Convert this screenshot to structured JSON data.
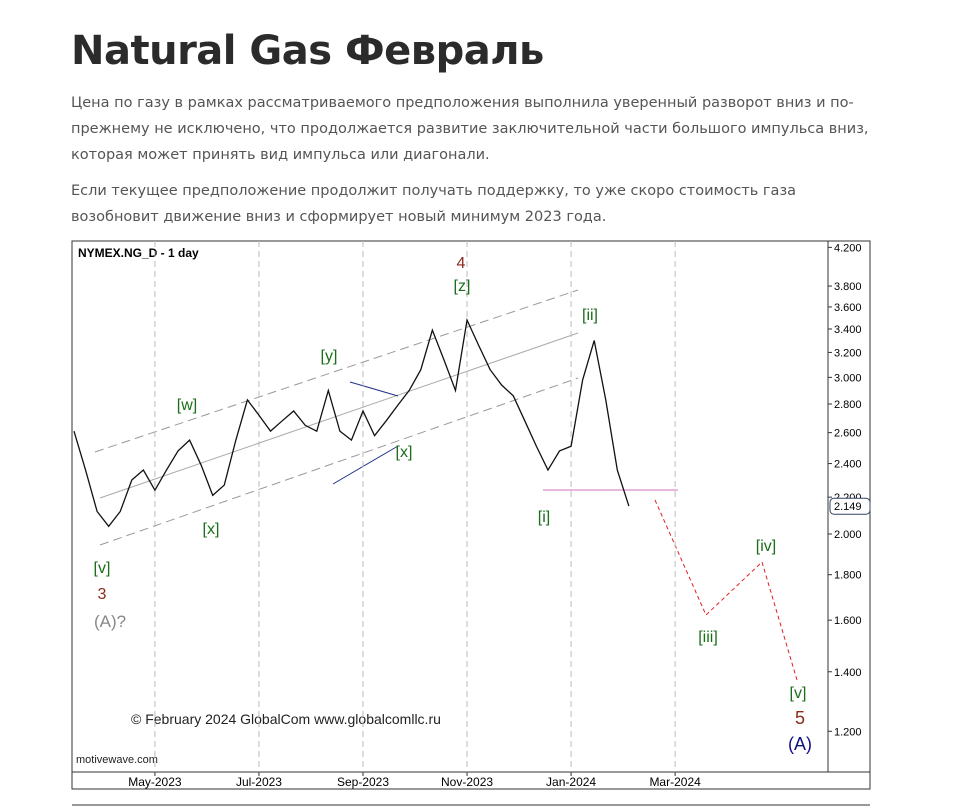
{
  "header": {
    "title": "Natural Gas Февраль"
  },
  "paragraphs": [
    "Цена по газу в рамках рассматриваемого предположения выполнила уверенный разворот вниз и по-прежнему не исключено, что продолжается развитие заключительной части большого импульса вниз, которая может принять вид импульса или диагонали.",
    "Если текущее предположение продолжит получать поддержку, то уже скоро стоимость газа возобновит движение вниз и сформирует новый минимум 2023 года."
  ],
  "chart_data": {
    "type": "line",
    "title": "NYMEX.NG_D - 1 day",
    "log_scale": true,
    "grid": true,
    "categories": [
      null,
      null,
      null,
      null,
      null,
      null,
      null,
      "May-2023",
      null,
      null,
      null,
      null,
      null,
      null,
      null,
      null,
      "Jul-2023",
      null,
      null,
      null,
      null,
      null,
      null,
      null,
      null,
      "Sep-2023",
      null,
      null,
      null,
      null,
      null,
      null,
      null,
      null,
      "Nov-2023",
      null,
      null,
      null,
      null,
      null,
      null,
      null,
      null,
      "Jan-2024",
      null,
      null,
      null,
      null,
      null,
      null,
      null,
      null,
      "Mar-2024",
      null,
      null,
      null,
      null,
      null,
      null,
      null,
      null,
      null,
      null,
      null,
      null,
      null
    ],
    "series": [
      {
        "name": "NG",
        "color": "#111111",
        "values": [
          2.61,
          2.36,
          2.12,
          2.04,
          2.12,
          2.3,
          2.36,
          2.24,
          2.36,
          2.48,
          2.55,
          2.39,
          2.21,
          2.27,
          2.55,
          2.83,
          2.72,
          2.61,
          2.68,
          2.75,
          2.65,
          2.61,
          2.9,
          2.61,
          2.55,
          2.75,
          2.58,
          2.68,
          2.79,
          2.9,
          3.06,
          3.39,
          3.14,
          2.9,
          3.48,
          3.26,
          3.06,
          2.94,
          2.86,
          2.68,
          2.51,
          2.36,
          2.48,
          2.51,
          2.98,
          3.3,
          2.83,
          2.36,
          2.15,
          null,
          null,
          null,
          null,
          null,
          null,
          null,
          null,
          null,
          null,
          null,
          null,
          null,
          null,
          null,
          null,
          null
        ]
      }
    ],
    "ylim": [
      1.08,
      4.27
    ],
    "yticks": [
      {
        "value": 1.2,
        "label": "1.200"
      },
      {
        "value": 1.4,
        "label": "1.400"
      },
      {
        "value": 1.6,
        "label": "1.600"
      },
      {
        "value": 1.8,
        "label": "1.800"
      },
      {
        "value": 2.0,
        "label": "2.000"
      },
      {
        "value": 2.2,
        "label": "2.200"
      },
      {
        "value": 2.4,
        "label": "2.400"
      },
      {
        "value": 2.6,
        "label": "2.600"
      },
      {
        "value": 2.8,
        "label": "2.800"
      },
      {
        "value": 3.0,
        "label": "3.000"
      },
      {
        "value": 3.2,
        "label": "3.200"
      },
      {
        "value": 3.4,
        "label": "3.400"
      },
      {
        "value": 3.6,
        "label": "3.600"
      },
      {
        "value": 3.8,
        "label": "3.800"
      },
      {
        "value": 4.2,
        "label": "4.200"
      }
    ],
    "last_price": 2.149,
    "annotations": [
      {
        "text": "[v]",
        "color": "#1a6e1a"
      },
      {
        "text": "3",
        "color": "#8b2a1a"
      },
      {
        "text": "(A)?",
        "color": "#888888"
      },
      {
        "text": "[w]",
        "color": "#1a6e1a"
      },
      {
        "text": "[x]",
        "color": "#1a6e1a"
      },
      {
        "text": "[y]",
        "color": "#1a6e1a"
      },
      {
        "text": "[x]",
        "color": "#1a6e1a"
      },
      {
        "text": "4",
        "color": "#8b2a1a"
      },
      {
        "text": "[z]",
        "color": "#1a6e1a"
      },
      {
        "text": "[i]",
        "color": "#1a6e1a"
      },
      {
        "text": "[ii]",
        "color": "#1a6e1a"
      },
      {
        "text": "[iii]",
        "color": "#1a6e1a"
      },
      {
        "text": "[iv]",
        "color": "#1a6e1a"
      },
      {
        "text": "[v]",
        "color": "#1a6e1a"
      },
      {
        "text": "5",
        "color": "#8b2a1a"
      },
      {
        "text": "(A)",
        "color": "#101080"
      }
    ],
    "copyright": "© February 2024 GlobalCom www.globalcomllc.ru",
    "source": "motivewave.com"
  }
}
